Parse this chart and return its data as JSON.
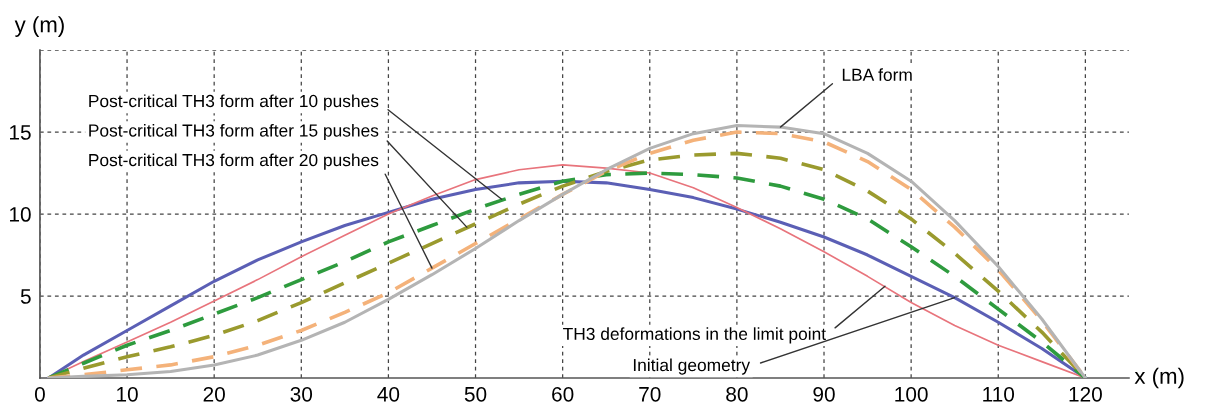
{
  "chart_data": {
    "type": "line",
    "xlabel": "x (m)",
    "ylabel": "y (m)",
    "x": [
      1,
      5,
      10,
      15,
      20,
      25,
      30,
      35,
      40,
      45,
      50,
      55,
      60,
      65,
      70,
      75,
      80,
      85,
      90,
      95,
      100,
      105,
      110,
      115,
      120
    ],
    "series": [
      {
        "color": "#5b5fb5",
        "line_style": "solid",
        "values": [
          0,
          1.4,
          2.9,
          4.4,
          5.9,
          7.2,
          8.3,
          9.3,
          10.1,
          10.9,
          11.5,
          11.9,
          12.0,
          11.9,
          11.5,
          11.0,
          10.3,
          9.5,
          8.6,
          7.5,
          6.2,
          4.9,
          3.4,
          1.8,
          0
        ]
      },
      {
        "color": "#e8747c",
        "line_style": "solid",
        "values": [
          0,
          1.0,
          2.2,
          3.4,
          4.7,
          6.0,
          7.4,
          8.7,
          10.0,
          11.1,
          12.1,
          12.7,
          13.0,
          12.8,
          12.5,
          11.6,
          10.4,
          9.1,
          7.7,
          6.2,
          4.6,
          3.2,
          2.0,
          1.0,
          0
        ]
      },
      {
        "color": "#2e9b3e",
        "line_style": "dashed",
        "values": [
          0,
          0.9,
          2.0,
          2.9,
          3.9,
          4.9,
          6.0,
          7.1,
          8.3,
          9.3,
          10.3,
          11.2,
          12.0,
          12.4,
          12.5,
          12.4,
          12.2,
          11.7,
          10.9,
          9.7,
          8.0,
          6.2,
          4.2,
          2.2,
          0
        ]
      },
      {
        "color": "#9a9a2e",
        "line_style": "dashed",
        "values": [
          0,
          0.6,
          1.3,
          1.9,
          2.6,
          3.5,
          4.6,
          5.8,
          7.0,
          8.2,
          9.4,
          10.6,
          11.7,
          12.6,
          13.3,
          13.6,
          13.7,
          13.4,
          12.7,
          11.4,
          9.7,
          7.6,
          5.3,
          2.8,
          0
        ]
      },
      {
        "color": "#f4b27a",
        "line_style": "dashed",
        "values": [
          0,
          0.2,
          0.5,
          0.8,
          1.3,
          2.0,
          2.9,
          4.0,
          5.2,
          6.7,
          8.2,
          9.7,
          11.2,
          12.6,
          13.7,
          14.5,
          15.0,
          14.9,
          14.4,
          13.2,
          11.5,
          9.2,
          6.6,
          3.5,
          0
        ]
      },
      {
        "color": "#b4b4b4",
        "line_style": "solid",
        "values": [
          0,
          0.1,
          0.2,
          0.4,
          0.8,
          1.4,
          2.3,
          3.4,
          4.8,
          6.3,
          7.9,
          9.6,
          11.2,
          12.7,
          14.0,
          14.9,
          15.4,
          15.3,
          14.9,
          13.7,
          12.0,
          9.6,
          6.8,
          3.6,
          0
        ]
      }
    ],
    "xlim": [
      0,
      125
    ],
    "ylim": [
      0,
      20
    ],
    "xticks": [
      0,
      10,
      20,
      30,
      40,
      50,
      60,
      70,
      80,
      90,
      100,
      110,
      120
    ],
    "yticks": [
      5,
      10,
      15,
      {
        "value": 20,
        "label": null
      }
    ],
    "grid": true,
    "legend": false,
    "marker": "none",
    "annotations": [
      {
        "text": "Post-critical TH3 form after 10 pushes",
        "x": 53,
        "y": 10.9
      },
      {
        "text": "Post-critical TH3 form after 15 pushes",
        "x": 49,
        "y": 9.2
      },
      {
        "text": "Post-critical TH3 form after 20 pushes",
        "x": 45,
        "y": 6.7
      },
      {
        "text": "LBA form",
        "x": 85,
        "y": 15.3
      },
      {
        "text": "TH3 deformations in the limit point",
        "x": 97,
        "y": 5.6
      },
      {
        "text": "Initial geometry",
        "x": 105,
        "y": 4.9
      }
    ]
  }
}
